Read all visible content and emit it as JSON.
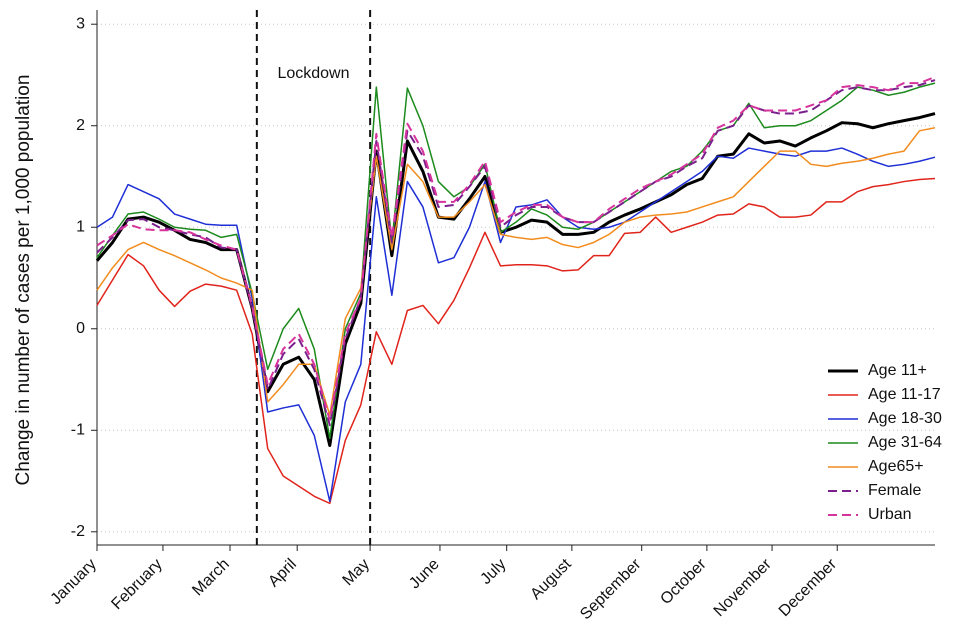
{
  "chart_data": {
    "type": "line",
    "y_label": "Change in number of cases per 1,000 population",
    "x": [
      0,
      1,
      2,
      3,
      4,
      5,
      6,
      7,
      8,
      9,
      10,
      11,
      12,
      13,
      14,
      15,
      16,
      17,
      18,
      19,
      20,
      21,
      22,
      23,
      24,
      25,
      26,
      27,
      28,
      29,
      30,
      31,
      32,
      33,
      34,
      35,
      36,
      37,
      38,
      39,
      40,
      41,
      42,
      43,
      44,
      45,
      46,
      47,
      48,
      49,
      50,
      51,
      52,
      53,
      54
    ],
    "xlim": [
      0,
      54
    ],
    "xticks": [
      {
        "value": 0,
        "label": "January"
      },
      {
        "value": 4.25,
        "label": "February"
      },
      {
        "value": 8.57,
        "label": "March"
      },
      {
        "value": 12.9,
        "label": "April"
      },
      {
        "value": 17.6,
        "label": "May"
      },
      {
        "value": 22.1,
        "label": "June"
      },
      {
        "value": 26.4,
        "label": "July"
      },
      {
        "value": 30.6,
        "label": "August"
      },
      {
        "value": 35.1,
        "label": "September"
      },
      {
        "value": 39.3,
        "label": "October"
      },
      {
        "value": 43.5,
        "label": "November"
      },
      {
        "value": 47.7,
        "label": "December"
      }
    ],
    "ylim": [
      -2.13,
      3.14
    ],
    "yticks": [
      -2,
      -1,
      0,
      1,
      2,
      3
    ],
    "grid": true,
    "legend": "lower right",
    "vlines": [
      10.3,
      17.6
    ],
    "annotation": "Lockdown",
    "series": [
      {
        "name": "Age 11+",
        "color": "#000000",
        "width": 3,
        "dash": false,
        "values": [
          0.67,
          0.85,
          1.08,
          1.1,
          1.05,
          0.97,
          0.88,
          0.85,
          0.78,
          0.78,
          0.2,
          -0.62,
          -0.35,
          -0.28,
          -0.5,
          -1.15,
          -0.15,
          0.25,
          1.75,
          0.72,
          1.85,
          1.55,
          1.1,
          1.08,
          1.28,
          1.5,
          0.95,
          1.0,
          1.07,
          1.05,
          0.93,
          0.93,
          0.95,
          1.05,
          1.12,
          1.18,
          1.25,
          1.32,
          1.42,
          1.48,
          1.7,
          1.72,
          1.92,
          1.83,
          1.85,
          1.8,
          1.88,
          1.95,
          2.03,
          2.02,
          1.98,
          2.02,
          2.05,
          2.08,
          2.12
        ]
      },
      {
        "name": "Age 11-17",
        "color": "#e0241b",
        "width": 1.5,
        "dash": false,
        "values": [
          0.23,
          0.48,
          0.73,
          0.62,
          0.38,
          0.22,
          0.37,
          0.44,
          0.42,
          0.38,
          -0.05,
          -1.18,
          -1.45,
          -1.55,
          -1.65,
          -1.72,
          -1.1,
          -0.75,
          -0.03,
          -0.35,
          0.18,
          0.23,
          0.05,
          0.28,
          0.6,
          0.95,
          0.62,
          0.63,
          0.63,
          0.62,
          0.57,
          0.58,
          0.72,
          0.72,
          0.94,
          0.95,
          1.1,
          0.95,
          1.0,
          1.05,
          1.12,
          1.13,
          1.23,
          1.2,
          1.1,
          1.1,
          1.12,
          1.25,
          1.25,
          1.35,
          1.4,
          1.42,
          1.45,
          1.47,
          1.48
        ]
      },
      {
        "name": "Age 18-30",
        "color": "#1f2fd6",
        "width": 1.5,
        "dash": false,
        "values": [
          1.0,
          1.1,
          1.42,
          1.35,
          1.28,
          1.13,
          1.08,
          1.03,
          1.02,
          1.02,
          0.3,
          -0.82,
          -0.78,
          -0.75,
          -1.05,
          -1.7,
          -0.72,
          -0.35,
          1.3,
          0.33,
          1.45,
          1.2,
          0.65,
          0.7,
          1.0,
          1.45,
          0.85,
          1.2,
          1.22,
          1.27,
          1.1,
          1.0,
          0.98,
          1.0,
          1.05,
          1.15,
          1.25,
          1.35,
          1.45,
          1.55,
          1.7,
          1.68,
          1.78,
          1.75,
          1.72,
          1.7,
          1.75,
          1.75,
          1.78,
          1.72,
          1.65,
          1.6,
          1.62,
          1.65,
          1.69
        ]
      },
      {
        "name": "Age 31-64",
        "color": "#1c8a1c",
        "width": 1.5,
        "dash": false,
        "values": [
          0.7,
          0.92,
          1.13,
          1.15,
          1.08,
          1.0,
          0.98,
          0.97,
          0.9,
          0.93,
          0.35,
          -0.4,
          0.0,
          0.2,
          -0.2,
          -1.08,
          0.0,
          0.35,
          2.38,
          0.85,
          2.37,
          2.0,
          1.45,
          1.3,
          1.4,
          1.62,
          0.95,
          1.05,
          1.18,
          1.12,
          1.0,
          0.98,
          1.05,
          1.15,
          1.25,
          1.35,
          1.45,
          1.55,
          1.6,
          1.75,
          1.95,
          2.0,
          2.22,
          1.98,
          2.0,
          2.0,
          2.05,
          2.15,
          2.25,
          2.38,
          2.35,
          2.3,
          2.33,
          2.38,
          2.42
        ]
      },
      {
        "name": "Age65+",
        "color": "#f28c1e",
        "width": 1.5,
        "dash": false,
        "values": [
          0.38,
          0.6,
          0.78,
          0.85,
          0.78,
          0.72,
          0.65,
          0.58,
          0.5,
          0.45,
          0.38,
          -0.72,
          -0.55,
          -0.35,
          -0.35,
          -0.85,
          0.1,
          0.4,
          1.7,
          0.78,
          1.62,
          1.45,
          1.1,
          1.1,
          1.25,
          1.42,
          0.93,
          0.9,
          0.88,
          0.9,
          0.83,
          0.8,
          0.85,
          0.93,
          1.05,
          1.1,
          1.12,
          1.13,
          1.15,
          1.2,
          1.25,
          1.3,
          1.45,
          1.6,
          1.75,
          1.75,
          1.62,
          1.6,
          1.63,
          1.65,
          1.68,
          1.72,
          1.75,
          1.95,
          1.98
        ]
      },
      {
        "name": "Female",
        "color": "#7b1f8c",
        "width": 2,
        "dash": true,
        "values": [
          0.75,
          0.9,
          1.07,
          1.08,
          1.0,
          0.97,
          0.93,
          0.9,
          0.8,
          0.78,
          0.2,
          -0.6,
          -0.25,
          -0.1,
          -0.4,
          -0.95,
          -0.1,
          0.3,
          1.85,
          0.85,
          1.95,
          1.7,
          1.2,
          1.22,
          1.4,
          1.6,
          1.0,
          1.12,
          1.2,
          1.2,
          1.1,
          1.05,
          1.05,
          1.15,
          1.25,
          1.35,
          1.45,
          1.5,
          1.6,
          1.68,
          1.95,
          2.0,
          2.2,
          2.15,
          2.12,
          2.12,
          2.15,
          2.25,
          2.35,
          2.38,
          2.35,
          2.35,
          2.38,
          2.4,
          2.45
        ]
      },
      {
        "name": "Urban",
        "color": "#d6339c",
        "width": 2,
        "dash": true,
        "values": [
          0.82,
          0.92,
          1.03,
          0.98,
          0.97,
          0.97,
          0.95,
          0.88,
          0.82,
          0.78,
          0.22,
          -0.55,
          -0.2,
          -0.05,
          -0.35,
          -0.9,
          -0.05,
          0.3,
          1.92,
          0.9,
          2.02,
          1.75,
          1.25,
          1.25,
          1.42,
          1.65,
          1.05,
          1.15,
          1.22,
          1.22,
          1.1,
          1.05,
          1.05,
          1.18,
          1.28,
          1.38,
          1.45,
          1.52,
          1.62,
          1.72,
          1.98,
          2.05,
          2.2,
          2.15,
          2.15,
          2.15,
          2.2,
          2.25,
          2.38,
          2.4,
          2.38,
          2.35,
          2.42,
          2.42,
          2.48
        ]
      }
    ]
  }
}
